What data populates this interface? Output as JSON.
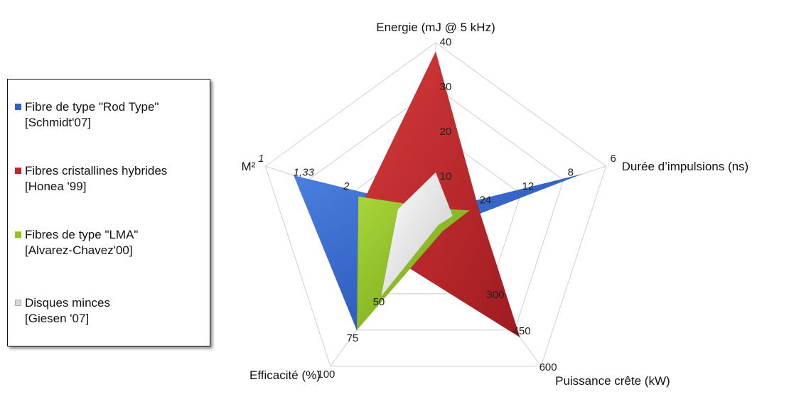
{
  "chart_data": {
    "type": "radar",
    "axes": [
      {
        "label": "Energie (mJ @ 5 kHz)",
        "ticks": [
          "10",
          "20",
          "30",
          "40"
        ],
        "range": [
          0,
          40
        ]
      },
      {
        "label": "Durée d’impulsions (ns)",
        "ticks": [
          "24",
          "12",
          "8",
          "6"
        ],
        "scale": "reciprocal"
      },
      {
        "label": "Puissance crête (kW)",
        "ticks": [
          "300",
          "450",
          "600"
        ],
        "range": [
          0,
          600
        ]
      },
      {
        "label": "Efficacité (%)",
        "ticks": [
          "50",
          "75",
          "100"
        ],
        "range": [
          0,
          100
        ]
      },
      {
        "label": "M²",
        "ticks": [
          "2",
          "1,33",
          "1"
        ],
        "scale": "reciprocal"
      }
    ],
    "series": [
      {
        "name": "Fibre de type \"Rod Type\" [Schmidt'07]",
        "color": "#2f62c8",
        "values": [
          2.5,
          7,
          30,
          75,
          1.2
        ]
      },
      {
        "name": "Fibres cristallines hybrides [Honea '99]",
        "color": "#c0272d",
        "values": [
          38,
          24,
          480,
          30,
          2.4
        ]
      },
      {
        "name": "Fibres de type \"LMA\" [Alvarez-Chavez'00]",
        "color": "#8fc31f",
        "values": [
          3,
          30,
          40,
          75,
          2.2
        ]
      },
      {
        "name": "Disques minces [Giesen '07]",
        "color": "#e2e2e2",
        "values": [
          11,
          60,
          15,
          52,
          4.5
        ]
      }
    ],
    "grid": true,
    "legend_position": "left"
  },
  "legend": {
    "items": [
      {
        "line1": "Fibre de type \"Rod Type\"",
        "line2": "[Schmidt'07]",
        "color": "#2f62c8"
      },
      {
        "line1": "Fibres cristallines hybrides",
        "line2": "[Honea '99]",
        "color": "#c0272d"
      },
      {
        "line1": "Fibres de type \"LMA\"",
        "line2": "[Alvarez-Chavez'00]",
        "color": "#8fc31f"
      },
      {
        "line1": "Disques minces",
        "line2": "[Giesen '07]",
        "color": "#d8d8d8"
      }
    ]
  }
}
